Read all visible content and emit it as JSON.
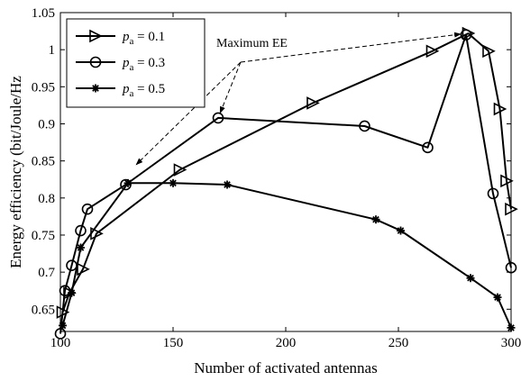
{
  "chart_data": {
    "type": "line",
    "xlabel": "Number of activated antennas",
    "ylabel": "Energy efficiency (bit/Joule/Hz",
    "xlim": [
      100,
      300
    ],
    "ylim": [
      0.62,
      1.05
    ],
    "xticks": [
      100,
      150,
      200,
      250,
      300
    ],
    "xtick_labels": [
      "100",
      "150",
      "200",
      "250",
      "300"
    ],
    "yticks": [
      0.65,
      0.7,
      0.75,
      0.8,
      0.85,
      0.9,
      0.95,
      1,
      1.05
    ],
    "ytick_labels": [
      "0.65",
      "0.7",
      "0.75",
      "0.8",
      "0.85",
      "0.9",
      "0.95",
      "1",
      "1.05"
    ],
    "grid": false,
    "legend_position": "top-left",
    "series": [
      {
        "name": "p_a = 0.1",
        "legend_var": "p",
        "legend_sub": "a",
        "legend_rest": " = 0.1",
        "marker": "triangle-right",
        "color": "#000000",
        "x": [
          101,
          104,
          110,
          116,
          153,
          212,
          265,
          281,
          290,
          295,
          298,
          300
        ],
        "y": [
          0.646,
          0.672,
          0.704,
          0.752,
          0.838,
          0.928,
          0.998,
          1.022,
          0.998,
          0.92,
          0.823,
          0.785
        ]
      },
      {
        "name": "p_a = 0.3",
        "legend_var": "p",
        "legend_sub": "a",
        "legend_rest": " = 0.3",
        "marker": "circle",
        "color": "#000000",
        "x": [
          100,
          102,
          105,
          109,
          112,
          129,
          170,
          235,
          263,
          280,
          292,
          300
        ],
        "y": [
          0.617,
          0.675,
          0.709,
          0.756,
          0.785,
          0.818,
          0.908,
          0.897,
          0.868,
          1.02,
          0.806,
          0.706
        ]
      },
      {
        "name": "p_a = 0.5",
        "legend_var": "p",
        "legend_sub": "a",
        "legend_rest": " = 0.5",
        "marker": "asterisk",
        "color": "#000000",
        "x": [
          101,
          105,
          109,
          130,
          150,
          174,
          240,
          251,
          282,
          294,
          300
        ],
        "y": [
          0.628,
          0.672,
          0.733,
          0.82,
          0.82,
          0.818,
          0.771,
          0.756,
          0.692,
          0.666,
          0.625
        ]
      }
    ],
    "annotations": [
      {
        "text": "Maximum EE",
        "arrow_targets": [
          {
            "x": 132,
            "y": 0.84
          },
          {
            "x": 170,
            "y": 0.908
          },
          {
            "x": 280,
            "y": 1.022
          }
        ]
      }
    ]
  }
}
